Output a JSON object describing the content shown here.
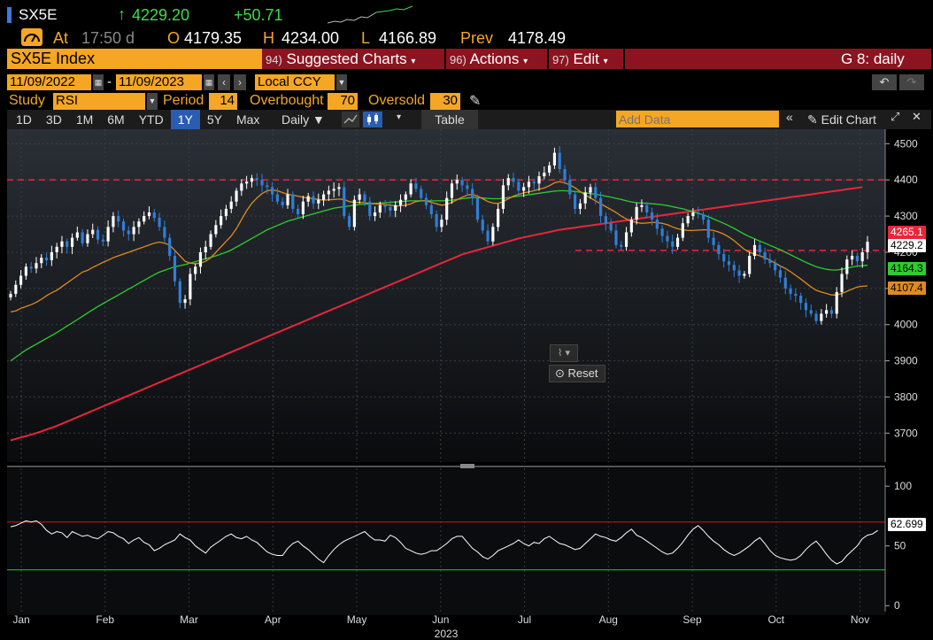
{
  "header": {
    "ticker": "SX5E",
    "last_price": "4229.20",
    "change": "+50.71",
    "at_label": "At",
    "time": "17:50 d",
    "open_label": "O",
    "open": "4179.35",
    "high_label": "H",
    "high": "4234.00",
    "low_label": "L",
    "low": "4166.89",
    "prev_label": "Prev",
    "prev": "4178.49"
  },
  "menubar": {
    "security": "SX5E Index",
    "suggested_num": "94)",
    "suggested": "Suggested Charts",
    "actions_num": "96)",
    "actions": "Actions",
    "edit_num": "97)",
    "edit": "Edit",
    "right": "G 8: daily"
  },
  "daterow": {
    "start": "11/09/2022",
    "sep": "-",
    "end": "11/09/2023",
    "currency": "Local CCY"
  },
  "studyrow": {
    "study_label": "Study",
    "study": "RSI",
    "period_label": "Period",
    "period": "14",
    "overbought_label": "Overbought",
    "overbought": "70",
    "oversold_label": "Oversold",
    "oversold": "30"
  },
  "toolbar": {
    "ranges": [
      "1D",
      "3D",
      "1M",
      "6M",
      "YTD",
      "1Y",
      "5Y",
      "Max"
    ],
    "active_range": "1Y",
    "frequency": "Daily ▼",
    "table": "Table",
    "add_data_placeholder": "Add Data",
    "edit_chart": "Edit Chart"
  },
  "overlay": {
    "reset": "Reset"
  },
  "tags": {
    "ma200": "4265.1",
    "last": "4229.2",
    "ma50": "4164.3",
    "ma20": "4107.4",
    "rsi": "62.699"
  },
  "colors": {
    "orange": "#f5a623",
    "menu_red": "#8b1420",
    "candle_up": "#ffffff",
    "candle_down": "#2f7fd8",
    "ma200": "#e8263a",
    "ma50": "#2ecc2e",
    "ma20": "#e08a1e",
    "rsi_line": "#ffffff",
    "overbought_line": "#d11",
    "oversold_line": "#2c2"
  },
  "chart_data": {
    "type": "candlestick",
    "price_axis": {
      "ticks": [
        3700,
        3800,
        3900,
        4000,
        4100,
        4200,
        4300,
        4400,
        4500
      ],
      "tick_labels": [
        "3700",
        "3800",
        "3900",
        "4000",
        "4100",
        "4200",
        "4300",
        "4400",
        "4500"
      ],
      "ylim": [
        3620,
        4540
      ]
    },
    "rsi_axis": {
      "ticks": [
        0,
        50,
        100
      ],
      "tick_labels": [
        "0",
        "50",
        "100"
      ],
      "ylim": [
        -5,
        112
      ],
      "overbought": 70,
      "oversold": 30
    },
    "x_labels": [
      "Jan",
      "Feb",
      "Mar",
      "Apr",
      "May",
      "Jun",
      "Jul",
      "Aug",
      "Sep",
      "Oct",
      "Nov"
    ],
    "x_year": "2023",
    "hlines": [
      4400,
      4205
    ],
    "closes": [
      4085,
      4110,
      4135,
      4160,
      4155,
      4170,
      4185,
      4178,
      4200,
      4215,
      4230,
      4215,
      4240,
      4255,
      4225,
      4250,
      4262,
      4235,
      4230,
      4270,
      4300,
      4285,
      4260,
      4250,
      4270,
      4285,
      4300,
      4310,
      4295,
      4270,
      4240,
      4190,
      4120,
      4060,
      4070,
      4140,
      4160,
      4200,
      4215,
      4250,
      4275,
      4300,
      4320,
      4340,
      4370,
      4390,
      4395,
      4405,
      4400,
      4385,
      4380,
      4360,
      4340,
      4330,
      4360,
      4320,
      4305,
      4340,
      4355,
      4335,
      4345,
      4360,
      4370,
      4375,
      4380,
      4300,
      4270,
      4345,
      4360,
      4340,
      4300,
      4310,
      4330,
      4325,
      4315,
      4330,
      4345,
      4360,
      4390,
      4375,
      4350,
      4330,
      4305,
      4270,
      4290,
      4350,
      4390,
      4400,
      4385,
      4375,
      4350,
      4290,
      4260,
      4230,
      4270,
      4320,
      4385,
      4405,
      4395,
      4370,
      4380,
      4395,
      4390,
      4410,
      4420,
      4440,
      4475,
      4430,
      4400,
      4360,
      4320,
      4335,
      4365,
      4380,
      4350,
      4300,
      4280,
      4260,
      4220,
      4215,
      4255,
      4290,
      4325,
      4330,
      4310,
      4290,
      4265,
      4245,
      4230,
      4215,
      4240,
      4280,
      4300,
      4310,
      4305,
      4290,
      4240,
      4220,
      4195,
      4175,
      4165,
      4150,
      4135,
      4140,
      4190,
      4220,
      4200,
      4180,
      4170,
      4150,
      4130,
      4100,
      4085,
      4080,
      4060,
      4040,
      4030,
      4010,
      4030,
      4040,
      4030,
      4090,
      4140,
      4180,
      4190,
      4175,
      4200,
      4229
    ],
    "ma20": [
      4035,
      4038,
      4045,
      4050,
      4055,
      4062,
      4070,
      4080,
      4088,
      4095,
      4105,
      4115,
      4125,
      4135,
      4145,
      4150,
      4158,
      4165,
      4172,
      4178,
      4185,
      4190,
      4195,
      4200,
      4205,
      4210,
      4215,
      4220,
      4225,
      4228,
      4225,
      4220,
      4205,
      4190,
      4175,
      4170,
      4168,
      4170,
      4175,
      4185,
      4200,
      4215,
      4230,
      4245,
      4265,
      4290,
      4315,
      4335,
      4350,
      4362,
      4370,
      4372,
      4370,
      4365,
      4360,
      4358,
      4355,
      4352,
      4350,
      4348,
      4346,
      4344,
      4345,
      4346,
      4347,
      4346,
      4340,
      4338,
      4338,
      4337,
      4335,
      4334,
      4333,
      4332,
      4330,
      4328,
      4328,
      4330,
      4334,
      4340,
      4342,
      4342,
      4338,
      4334,
      4330,
      4332,
      4338,
      4345,
      4352,
      4358,
      4360,
      4355,
      4348,
      4340,
      4336,
      4335,
      4340,
      4348,
      4355,
      4360,
      4364,
      4367,
      4370,
      4374,
      4378,
      4384,
      4392,
      4395,
      4392,
      4386,
      4378,
      4368,
      4358,
      4350,
      4342,
      4334,
      4326,
      4318,
      4310,
      4300,
      4292,
      4286,
      4282,
      4280,
      4281,
      4282,
      4282,
      4280,
      4276,
      4270,
      4265,
      4262,
      4260,
      4260,
      4261,
      4262,
      4262,
      4260,
      4256,
      4250,
      4242,
      4232,
      4220,
      4208,
      4200,
      4195,
      4190,
      4185,
      4178,
      4170,
      4162,
      4155,
      4146,
      4136,
      4126,
      4115,
      4104,
      4095,
      4090,
      4086,
      4082,
      4082,
      4086,
      4092,
      4098,
      4104,
      4106,
      4107
    ],
    "ma50": [
      3900,
      3910,
      3920,
      3930,
      3938,
      3946,
      3954,
      3962,
      3970,
      3978,
      3987,
      3996,
      4005,
      4014,
      4023,
      4032,
      4041,
      4050,
      4058,
      4066,
      4074,
      4082,
      4090,
      4098,
      4106,
      4114,
      4122,
      4130,
      4138,
      4145,
      4150,
      4155,
      4160,
      4163,
      4166,
      4170,
      4174,
      4178,
      4182,
      4186,
      4190,
      4195,
      4200,
      4206,
      4214,
      4222,
      4230,
      4238,
      4246,
      4254,
      4262,
      4268,
      4274,
      4280,
      4286,
      4290,
      4294,
      4298,
      4302,
      4306,
      4310,
      4314,
      4318,
      4322,
      4324,
      4326,
      4328,
      4330,
      4332,
      4333,
      4334,
      4335,
      4336,
      4337,
      4338,
      4339,
      4340,
      4341,
      4342,
      4342,
      4342,
      4342,
      4342,
      4342,
      4342,
      4343,
      4344,
      4346,
      4348,
      4350,
      4351,
      4351,
      4350,
      4349,
      4348,
      4348,
      4349,
      4351,
      4353,
      4355,
      4357,
      4359,
      4361,
      4363,
      4365,
      4367,
      4369,
      4370,
      4370,
      4369,
      4368,
      4366,
      4364,
      4362,
      4360,
      4358,
      4355,
      4352,
      4349,
      4346,
      4342,
      4339,
      4337,
      4336,
      4335,
      4334,
      4333,
      4331,
      4329,
      4326,
      4323,
      4320,
      4316,
      4312,
      4308,
      4303,
      4298,
      4292,
      4286,
      4280,
      4273,
      4266,
      4258,
      4250,
      4243,
      4237,
      4231,
      4225,
      4219,
      4213,
      4207,
      4200,
      4193,
      4186,
      4179,
      4172,
      4166,
      4160,
      4156,
      4153,
      4151,
      4151,
      4153,
      4156,
      4159,
      4162,
      4163,
      4164
    ],
    "ma200": [
      3680,
      3684,
      3688,
      3692,
      3696,
      3700,
      3705,
      3710,
      3715,
      3720,
      3726,
      3732,
      3738,
      3744,
      3750,
      3756,
      3762,
      3768,
      3774,
      3780,
      3786,
      3792,
      3798,
      3804,
      3810,
      3816,
      3822,
      3828,
      3834,
      3840,
      3846,
      3852,
      3858,
      3864,
      3870,
      3876,
      3882,
      3888,
      3894,
      3900,
      3906,
      3912,
      3918,
      3924,
      3930,
      3936,
      3942,
      3948,
      3954,
      3960,
      3966,
      3972,
      3978,
      3984,
      3990,
      3996,
      4002,
      4008,
      4014,
      4020,
      4026,
      4032,
      4038,
      4044,
      4050,
      4056,
      4062,
      4068,
      4074,
      4080,
      4086,
      4092,
      4098,
      4104,
      4110,
      4116,
      4122,
      4128,
      4134,
      4140,
      4146,
      4152,
      4158,
      4164,
      4170,
      4176,
      4182,
      4188,
      4194,
      4198,
      4202,
      4206,
      4210,
      4214,
      4218,
      4222,
      4226,
      4230,
      4234,
      4238,
      4241,
      4244,
      4247,
      4250,
      4253,
      4256,
      4259,
      4262,
      4264,
      4266,
      4268,
      4270,
      4272,
      4274,
      4276,
      4278,
      4280,
      4282,
      4284,
      4286,
      4288,
      4290,
      4292,
      4294,
      4296,
      4298,
      4300,
      4302,
      4304,
      4306,
      4308,
      4310,
      4312,
      4314,
      4316,
      4318,
      4320,
      4322,
      4324,
      4326,
      4328,
      4330,
      4332,
      4334,
      4336,
      4338,
      4340,
      4342,
      4344,
      4346,
      4348,
      4350,
      4352,
      4354,
      4356,
      4358,
      4360,
      4362,
      4364,
      4366,
      4368,
      4370,
      4372,
      4374,
      4376,
      4378,
      4380,
      4265
    ],
    "rsi": [
      66,
      67,
      69,
      71,
      70,
      71,
      68,
      63,
      60,
      62,
      61,
      57,
      62,
      60,
      58,
      59,
      57,
      56,
      59,
      62,
      61,
      58,
      56,
      52,
      55,
      57,
      53,
      51,
      46,
      48,
      51,
      53,
      55,
      60,
      57,
      55,
      50,
      47,
      44,
      49,
      52,
      55,
      58,
      60,
      57,
      56,
      58,
      55,
      53,
      49,
      45,
      43,
      42,
      42,
      48,
      52,
      54,
      50,
      47,
      43,
      39,
      36,
      42,
      47,
      51,
      54,
      56,
      58,
      60,
      62,
      58,
      55,
      55,
      54,
      59,
      57,
      53,
      48,
      46,
      44,
      43,
      44,
      46,
      46,
      49,
      52,
      56,
      58,
      58,
      53,
      48,
      45,
      41,
      39,
      42,
      46,
      48,
      50,
      52,
      55,
      52,
      50,
      53,
      52,
      56,
      58,
      55,
      52,
      51,
      49,
      47,
      48,
      52,
      56,
      60,
      58,
      57,
      55,
      54,
      57,
      61,
      64,
      59,
      57,
      54,
      51,
      48,
      45,
      43,
      44,
      48,
      53,
      59,
      64,
      67,
      63,
      58,
      54,
      51,
      47,
      44,
      42,
      44,
      47,
      50,
      54,
      57,
      52,
      46,
      42,
      40,
      39,
      38,
      39,
      42,
      47,
      51,
      54,
      49,
      43,
      38,
      35,
      37,
      42,
      46,
      50,
      56,
      59,
      60,
      63
    ]
  }
}
